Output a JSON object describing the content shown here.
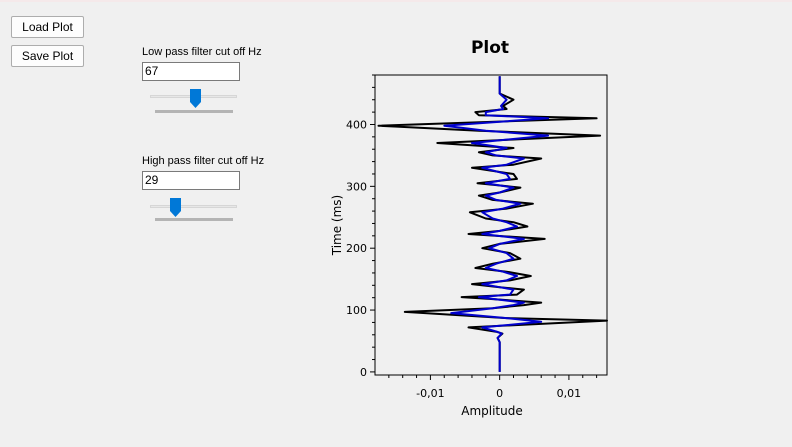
{
  "toolbar": {
    "load_label": "Load Plot",
    "save_label": "Save Plot"
  },
  "low_pass": {
    "label": "Low pass filter cut off Hz",
    "value": "67",
    "slider_fraction": 0.52
  },
  "high_pass": {
    "label": "High pass filter cut off Hz",
    "value": "29",
    "slider_fraction": 0.26
  },
  "colors": {
    "slider_thumb": "#0078d7",
    "original_trace": "#000000",
    "filtered_trace": "#0000cc"
  },
  "chart_data": {
    "type": "line",
    "title": "Plot",
    "xlabel": "Amplitude",
    "ylabel": "Time (ms)",
    "xlim": [
      -0.018,
      0.0155
    ],
    "ylim": [
      -5,
      480
    ],
    "x_tick_values": [
      -0.01,
      0,
      0.01
    ],
    "x_tick_labels": [
      "-0,01",
      "0",
      "0,01"
    ],
    "y_tick_values": [
      0,
      100,
      200,
      300,
      400
    ],
    "y_tick_labels": [
      "0",
      "100",
      "200",
      "300",
      "400"
    ],
    "series": [
      {
        "color": "#000000",
        "points": [
          [
            0,
            0
          ],
          [
            0,
            30
          ],
          [
            0,
            48
          ],
          [
            -0.0003,
            55
          ],
          [
            0.0004,
            62
          ],
          [
            -0.0005,
            65
          ],
          [
            -0.0045,
            72
          ],
          [
            0.0155,
            83
          ],
          [
            0.001,
            87
          ],
          [
            -0.0137,
            97
          ],
          [
            -0.001,
            103
          ],
          [
            0.0035,
            108
          ],
          [
            0.006,
            112
          ],
          [
            -0.0015,
            118
          ],
          [
            -0.0055,
            121
          ],
          [
            0.0025,
            125
          ],
          [
            0.0035,
            133
          ],
          [
            0,
            137
          ],
          [
            -0.004,
            142
          ],
          [
            0.0015,
            148
          ],
          [
            0.0045,
            155
          ],
          [
            0.001,
            162
          ],
          [
            -0.0035,
            168
          ],
          [
            -0.001,
            175
          ],
          [
            0.003,
            183
          ],
          [
            0.0015,
            192
          ],
          [
            -0.0025,
            200
          ],
          [
            0,
            207
          ],
          [
            0.0065,
            215
          ],
          [
            -0.0045,
            223
          ],
          [
            0,
            228
          ],
          [
            0.004,
            235
          ],
          [
            0.002,
            242
          ],
          [
            -0.002,
            248
          ],
          [
            -0.0043,
            258
          ],
          [
            0.001,
            264
          ],
          [
            0.0048,
            272
          ],
          [
            -0.001,
            278
          ],
          [
            -0.003,
            285
          ],
          [
            0,
            290
          ],
          [
            0.003,
            298
          ],
          [
            -0.0032,
            305
          ],
          [
            0.0025,
            312
          ],
          [
            0.002,
            320
          ],
          [
            -0.004,
            330
          ],
          [
            0.002,
            335
          ],
          [
            0.006,
            345
          ],
          [
            -0.001,
            350
          ],
          [
            -0.003,
            355
          ],
          [
            0.002,
            362
          ],
          [
            -0.009,
            370
          ],
          [
            0.0145,
            382
          ],
          [
            -0.003,
            390
          ],
          [
            -0.0175,
            398
          ],
          [
            0.014,
            410
          ],
          [
            -0.003,
            415
          ],
          [
            -0.0035,
            420
          ],
          [
            0.001,
            425
          ],
          [
            0.0005,
            430
          ],
          [
            0.002,
            440
          ],
          [
            0,
            450
          ],
          [
            0,
            465
          ],
          [
            0,
            478
          ]
        ]
      },
      {
        "color": "#0000cc",
        "points": [
          [
            0,
            0
          ],
          [
            0,
            30
          ],
          [
            0,
            48
          ],
          [
            -0.0003,
            55
          ],
          [
            0.0003,
            62
          ],
          [
            -0.0004,
            65
          ],
          [
            -0.0025,
            72
          ],
          [
            0.006,
            81
          ],
          [
            0.001,
            87
          ],
          [
            -0.007,
            95
          ],
          [
            -0.001,
            103
          ],
          [
            0.002,
            108
          ],
          [
            0.0035,
            112
          ],
          [
            -0.001,
            118
          ],
          [
            -0.003,
            121
          ],
          [
            0.0015,
            125
          ],
          [
            0.002,
            133
          ],
          [
            0,
            137
          ],
          [
            -0.0025,
            142
          ],
          [
            0.001,
            148
          ],
          [
            0.0025,
            155
          ],
          [
            0.0005,
            162
          ],
          [
            -0.002,
            168
          ],
          [
            -0.0005,
            175
          ],
          [
            0.002,
            183
          ],
          [
            0.001,
            192
          ],
          [
            -0.0015,
            200
          ],
          [
            0,
            207
          ],
          [
            0.0035,
            215
          ],
          [
            -0.0025,
            223
          ],
          [
            0,
            228
          ],
          [
            0.0025,
            235
          ],
          [
            0.001,
            242
          ],
          [
            -0.001,
            248
          ],
          [
            -0.0025,
            258
          ],
          [
            0.0005,
            264
          ],
          [
            0.003,
            272
          ],
          [
            -0.0005,
            278
          ],
          [
            -0.002,
            285
          ],
          [
            0,
            290
          ],
          [
            0.002,
            298
          ],
          [
            -0.002,
            305
          ],
          [
            0.0015,
            312
          ],
          [
            0.001,
            320
          ],
          [
            -0.0025,
            330
          ],
          [
            0.001,
            335
          ],
          [
            0.0035,
            345
          ],
          [
            -0.0005,
            350
          ],
          [
            -0.002,
            355
          ],
          [
            0.001,
            362
          ],
          [
            -0.004,
            370
          ],
          [
            0.007,
            382
          ],
          [
            -0.002,
            390
          ],
          [
            -0.008,
            398
          ],
          [
            0.007,
            410
          ],
          [
            -0.002,
            415
          ],
          [
            -0.002,
            420
          ],
          [
            0.0005,
            425
          ],
          [
            0.0002,
            430
          ],
          [
            0.001,
            440
          ],
          [
            0,
            450
          ],
          [
            0,
            465
          ],
          [
            0,
            478
          ]
        ]
      }
    ]
  }
}
